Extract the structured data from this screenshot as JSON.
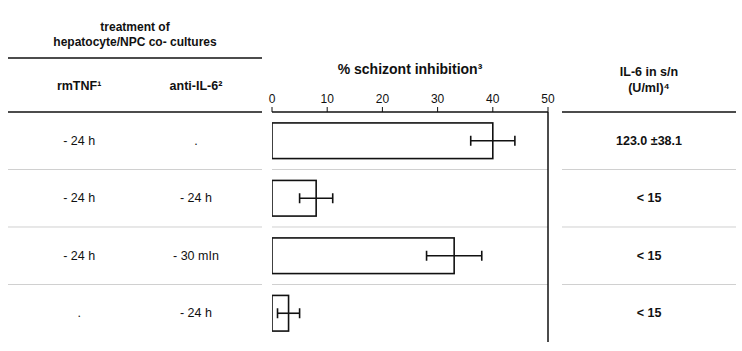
{
  "chart_data": {
    "type": "bar",
    "orientation": "horizontal",
    "title": "% schizont inhibition³",
    "values": [
      40,
      8,
      33,
      3
    ],
    "errors": [
      4,
      3,
      5,
      2
    ],
    "color": "#ffffff",
    "xlim": [
      0,
      50
    ],
    "xticks": [
      0,
      10,
      20,
      30,
      40,
      50
    ],
    "grid": false,
    "table": {
      "title": "treatment of\nhepatocyte/NPC co- cultures",
      "columns": [
        {
          "name": "rmTNF¹",
          "labels": [
            "- 24 h",
            "- 24 h",
            "- 24 h",
            "."
          ]
        },
        {
          "name": "anti-IL-6²",
          "labels": [
            ".",
            "- 24 h",
            "- 30 mIn",
            "- 24 h"
          ]
        }
      ]
    },
    "value_table": {
      "title": "IL-6 in s/n\n(U/ml)⁴",
      "labels": [
        "123.0 ±38.1",
        "< 15",
        "< 15",
        "< 15"
      ]
    }
  }
}
